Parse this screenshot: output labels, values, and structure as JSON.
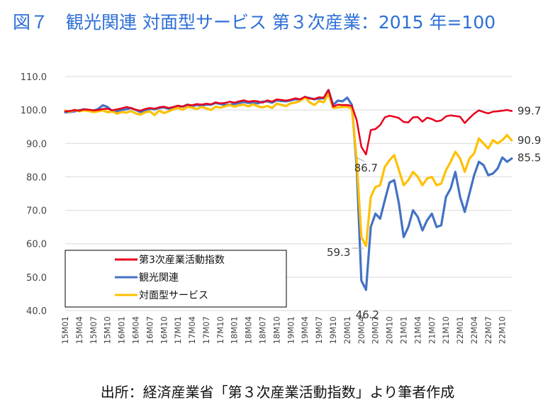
{
  "page": {
    "title": "図７　観光関連 対面型サービス 第３次産業：2015 年=100",
    "footer": "出所：経済産業省「第３次産業活動指数」より筆者作成"
  },
  "chart_data": {
    "type": "line",
    "ylim": [
      40,
      110
    ],
    "yticks": [
      "40.0",
      "50.0",
      "60.0",
      "70.0",
      "80.0",
      "90.0",
      "100.0",
      "110.0"
    ],
    "grid": true,
    "legend_position": "bottom-left",
    "x": [
      "15M01",
      "15M02",
      "15M03",
      "15M04",
      "15M05",
      "15M06",
      "15M07",
      "15M08",
      "15M09",
      "15M10",
      "15M11",
      "15M12",
      "16M01",
      "16M02",
      "16M03",
      "16M04",
      "16M05",
      "16M06",
      "16M07",
      "16M08",
      "16M09",
      "16M10",
      "16M11",
      "16M12",
      "17M01",
      "17M02",
      "17M03",
      "17M04",
      "17M05",
      "17M06",
      "17M07",
      "17M08",
      "17M09",
      "17M10",
      "17M11",
      "17M12",
      "18M01",
      "18M02",
      "18M03",
      "18M04",
      "18M05",
      "18M06",
      "18M07",
      "18M08",
      "18M09",
      "18M10",
      "18M11",
      "18M12",
      "19M01",
      "19M02",
      "19M03",
      "19M04",
      "19M05",
      "19M06",
      "19M07",
      "19M08",
      "19M09",
      "19M10",
      "19M11",
      "19M12",
      "20M01",
      "20M02",
      "20M03",
      "20M04",
      "20M05",
      "20M06",
      "20M07",
      "20M08",
      "20M09",
      "20M10",
      "20M11",
      "20M12",
      "21M01",
      "21M02",
      "21M03",
      "21M04",
      "21M05",
      "21M06",
      "21M07",
      "21M08",
      "21M09",
      "21M10",
      "21M11",
      "21M12",
      "22M01",
      "22M02",
      "22M03",
      "22M04",
      "22M05",
      "22M06",
      "22M07",
      "22M08",
      "22M09",
      "22M10",
      "22M11",
      "22M12"
    ],
    "xtick_labels": [
      "15M01",
      "15M04",
      "15M07",
      "15M10",
      "16M01",
      "16M04",
      "16M07",
      "16M10",
      "17M01",
      "17M04",
      "17M07",
      "17M10",
      "18M01",
      "18M04",
      "18M07",
      "18M10",
      "19M01",
      "19M04",
      "19M07",
      "19M10",
      "20M01",
      "20M04",
      "20M07",
      "20M10",
      "21M01",
      "21M04",
      "21M07",
      "21M10",
      "22M01",
      "22M04",
      "22M07",
      "22M10"
    ],
    "series": [
      {
        "name": "第3次産業活動指数",
        "color": "#e8001c",
        "values": [
          99.6,
          99.7,
          100.0,
          99.8,
          100.2,
          100.1,
          99.9,
          100.0,
          100.3,
          100.4,
          99.9,
          100.2,
          100.5,
          100.9,
          100.6,
          100.1,
          99.8,
          100.3,
          100.6,
          100.4,
          100.8,
          101.0,
          100.6,
          100.9,
          101.3,
          101.0,
          101.6,
          101.4,
          101.8,
          101.6,
          101.9,
          101.7,
          102.3,
          102.0,
          102.1,
          102.5,
          102.2,
          102.6,
          102.9,
          102.5,
          102.7,
          102.6,
          102.2,
          102.9,
          102.5,
          103.2,
          103.0,
          102.8,
          103.1,
          103.5,
          103.2,
          104.0,
          103.4,
          103.3,
          103.8,
          103.7,
          106.0,
          101.0,
          101.6,
          101.5,
          101.5,
          101.2,
          97.0,
          89.0,
          86.7,
          94.0,
          94.3,
          95.5,
          97.8,
          98.3,
          98.0,
          97.6,
          96.4,
          96.3,
          97.8,
          97.9,
          96.5,
          97.7,
          97.3,
          96.6,
          96.9,
          98.1,
          98.4,
          98.2,
          98.0,
          96.1,
          97.6,
          98.9,
          99.9,
          99.4,
          99.0,
          99.5,
          99.6,
          99.8,
          100.0,
          99.7
        ]
      },
      {
        "name": "観光関連",
        "color": "#4472c4",
        "values": [
          99.3,
          99.4,
          99.6,
          99.9,
          100.2,
          100.0,
          99.8,
          100.3,
          101.4,
          100.9,
          99.7,
          99.6,
          100.0,
          100.2,
          100.6,
          100.0,
          99.4,
          99.9,
          100.4,
          100.2,
          100.6,
          100.8,
          100.4,
          100.8,
          101.2,
          101.0,
          101.6,
          101.2,
          101.5,
          101.3,
          101.6,
          101.6,
          102.1,
          101.8,
          101.5,
          101.6,
          101.8,
          102.1,
          102.4,
          102.1,
          102.2,
          102.0,
          102.5,
          102.6,
          102.2,
          102.9,
          102.7,
          102.6,
          102.9,
          103.2,
          103.2,
          103.8,
          103.6,
          103.2,
          103.4,
          103.5,
          106.0,
          101.5,
          102.8,
          102.6,
          103.7,
          101.5,
          83.0,
          49.0,
          46.2,
          65.0,
          69.0,
          67.5,
          73.0,
          78.3,
          79.0,
          72.0,
          62.0,
          65.0,
          70.0,
          68.0,
          64.0,
          67.0,
          69.0,
          65.0,
          65.5,
          74.0,
          76.5,
          81.5,
          74.0,
          69.5,
          75.0,
          80.5,
          84.5,
          83.5,
          80.5,
          81.0,
          82.5,
          85.8,
          84.5,
          85.5
        ]
      },
      {
        "name": "対面型サービス",
        "color": "#ffc000",
        "values": [
          99.8,
          99.5,
          100.0,
          99.6,
          99.9,
          99.7,
          99.4,
          99.6,
          99.9,
          99.3,
          99.6,
          98.9,
          99.4,
          99.2,
          99.7,
          99.0,
          98.6,
          99.3,
          99.6,
          98.5,
          99.8,
          99.1,
          99.6,
          100.2,
          100.6,
          100.1,
          100.9,
          100.7,
          100.3,
          100.9,
          100.5,
          100.0,
          101.0,
          100.7,
          101.1,
          101.5,
          101.0,
          101.4,
          101.6,
          101.1,
          101.7,
          101.1,
          100.8,
          101.2,
          100.6,
          101.9,
          101.5,
          101.2,
          102.0,
          102.2,
          102.7,
          103.8,
          102.3,
          101.5,
          102.7,
          102.3,
          104.8,
          100.6,
          100.8,
          100.9,
          101.0,
          100.3,
          85.0,
          62.0,
          59.3,
          74.0,
          77.0,
          77.5,
          83.0,
          85.0,
          86.5,
          82.0,
          77.5,
          79.0,
          81.5,
          80.0,
          77.5,
          79.5,
          80.0,
          77.5,
          78.0,
          82.0,
          84.5,
          87.5,
          85.5,
          81.5,
          85.5,
          87.0,
          91.5,
          90.0,
          88.5,
          91.0,
          90.0,
          91.0,
          92.5,
          90.9
        ]
      }
    ],
    "annotations": [
      {
        "text": "99.7",
        "series": 0,
        "index": 95
      },
      {
        "text": "90.9",
        "series": 2,
        "index": 95
      },
      {
        "text": "85.5",
        "series": 1,
        "index": 95
      },
      {
        "text": "86.7",
        "series": 0,
        "index": 64
      },
      {
        "text": "59.3",
        "series": 2,
        "index": 64
      },
      {
        "text": "46.2",
        "series": 1,
        "index": 64
      }
    ]
  }
}
